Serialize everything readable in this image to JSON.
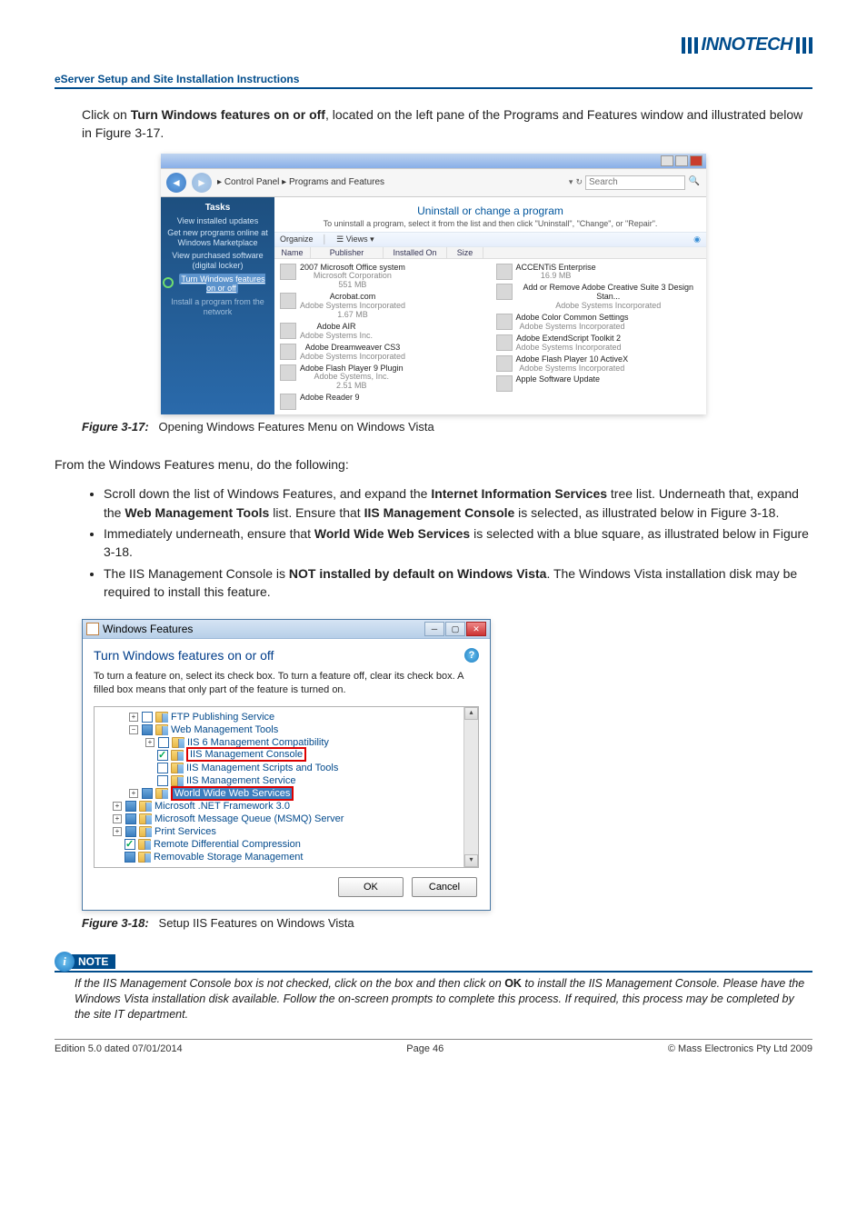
{
  "header": {
    "logo_text": "INNOTECH",
    "doc_title": "eServer Setup and Site Installation Instructions"
  },
  "intro": {
    "prefix": "Click on ",
    "bold": "Turn Windows features on or off",
    "suffix": ", located on the left pane of the Programs and Features window and illustrated below in Figure 3-17."
  },
  "fig1": {
    "breadcrumb_1": "Control Panel",
    "breadcrumb_2": "Programs and Features",
    "search_ph": "Search",
    "tasks_title": "Tasks",
    "task1": "View installed updates",
    "task2": "Get new programs online at Windows Marketplace",
    "task3": "View purchased software (digital locker)",
    "task4": "Turn Windows features on or off",
    "task5": "Install a program from the network",
    "mp_title": "Uninstall or change a program",
    "mp_desc": "To uninstall a program, select it from the list and then click \"Uninstall\", \"Change\", or \"Repair\".",
    "tool_org": "Organize",
    "tool_views": "Views",
    "col_name": "Name",
    "col_pub": "Publisher",
    "col_inst": "Installed On",
    "col_size": "Size",
    "left_items": [
      {
        "nm": "2007 Microsoft Office system",
        "pub": "Microsoft Corporation",
        "sz": "551 MB"
      },
      {
        "nm": "Acrobat.com",
        "pub": "Adobe Systems Incorporated",
        "sz": "1.67 MB"
      },
      {
        "nm": "Adobe AIR",
        "pub": "Adobe Systems Inc.",
        "sz": ""
      },
      {
        "nm": "Adobe Dreamweaver CS3",
        "pub": "Adobe Systems Incorporated",
        "sz": ""
      },
      {
        "nm": "Adobe Flash Player 9 Plugin",
        "pub": "Adobe Systems, Inc.",
        "sz": "2.51 MB"
      },
      {
        "nm": "Adobe Reader 9",
        "pub": "",
        "sz": ""
      }
    ],
    "right_items": [
      {
        "nm": "ACCENTiS Enterprise",
        "pub": "",
        "sz": "16.9 MB"
      },
      {
        "nm": "Add or Remove Adobe Creative Suite 3 Design Stan...",
        "pub": "Adobe Systems Incorporated",
        "sz": ""
      },
      {
        "nm": "Adobe Color Common Settings",
        "pub": "Adobe Systems Incorporated",
        "sz": ""
      },
      {
        "nm": "Adobe ExtendScript Toolkit 2",
        "pub": "Adobe Systems Incorporated",
        "sz": ""
      },
      {
        "nm": "Adobe Flash Player 10 ActiveX",
        "pub": "Adobe Systems Incorporated",
        "sz": ""
      },
      {
        "nm": "Apple Software Update",
        "pub": "",
        "sz": ""
      }
    ],
    "caption_label": "Figure 3-17:",
    "caption_text": "Opening Windows Features Menu on Windows Vista"
  },
  "mid_text": "From the Windows Features menu, do the following:",
  "bullets": {
    "b1_a": "Scroll down the list of Windows Features, and expand the ",
    "b1_bold1": "Internet Information Services",
    "b1_b": " tree list. Underneath that, expand the ",
    "b1_bold2": "Web Management Tools",
    "b1_c": " list.  Ensure that ",
    "b1_bold3": "IIS Management Console",
    "b1_d": " is selected, as illustrated below in Figure 3-18.",
    "b2_a": "Immediately underneath, ensure that ",
    "b2_bold": "World Wide Web Services",
    "b2_b": " is selected with a blue square, as illustrated below in Figure 3-18.",
    "b3_a": "The IIS Management Console is ",
    "b3_bold": "NOT installed by default on Windows Vista",
    "b3_b": ".  The Windows Vista installation disk may be required to install this feature."
  },
  "fig2": {
    "title": "Windows Features",
    "heading": "Turn Windows features on or off",
    "desc": "To turn a feature on, select its check box. To turn a feature off, clear its check box. A filled box means that only part of the feature is turned on.",
    "rows": [
      {
        "ind": 1,
        "exp": "+",
        "chk": "",
        "label": "FTP Publishing Service"
      },
      {
        "ind": 1,
        "exp": "−",
        "chk": "fill",
        "label": "Web Management Tools"
      },
      {
        "ind": 2,
        "exp": "+",
        "chk": "",
        "label": "IIS 6 Management Compatibility"
      },
      {
        "ind": 2,
        "exp": "",
        "chk": "tick",
        "label": "IIS Management Console",
        "red": 1
      },
      {
        "ind": 2,
        "exp": "",
        "chk": "",
        "label": "IIS Management Scripts and Tools"
      },
      {
        "ind": 2,
        "exp": "",
        "chk": "",
        "label": "IIS Management Service"
      },
      {
        "ind": 1,
        "exp": "+",
        "chk": "fill",
        "label": "World Wide Web Services",
        "red": 2
      },
      {
        "ind": 0,
        "exp": "+",
        "chk": "fill",
        "label": "Microsoft .NET Framework 3.0"
      },
      {
        "ind": 0,
        "exp": "+",
        "chk": "fill",
        "label": "Microsoft Message Queue (MSMQ) Server"
      },
      {
        "ind": 0,
        "exp": "+",
        "chk": "fill",
        "label": "Print Services"
      },
      {
        "ind": 0,
        "exp": "",
        "chk": "tick",
        "label": "Remote Differential Compression"
      },
      {
        "ind": 0,
        "exp": "",
        "chk": "fill",
        "label": "Removable Storage Management"
      }
    ],
    "btn_ok": "OK",
    "btn_cancel": "Cancel",
    "caption_label": "Figure 3-18:",
    "caption_text": "Setup IIS Features on Windows Vista"
  },
  "note": {
    "label": "NOTE",
    "t1": "If the IIS Management Console box is not checked, click on the box and then click on ",
    "bold": "OK",
    "t2": " to install the IIS Management Console.  Please have the Windows Vista installation disk available.  Follow the on-screen prompts to complete this process.  If required, this process may be completed by the site IT department."
  },
  "footer": {
    "left": "Edition 5.0 dated 07/01/2014",
    "center": "Page 46",
    "right": "© Mass Electronics Pty Ltd  2009"
  }
}
